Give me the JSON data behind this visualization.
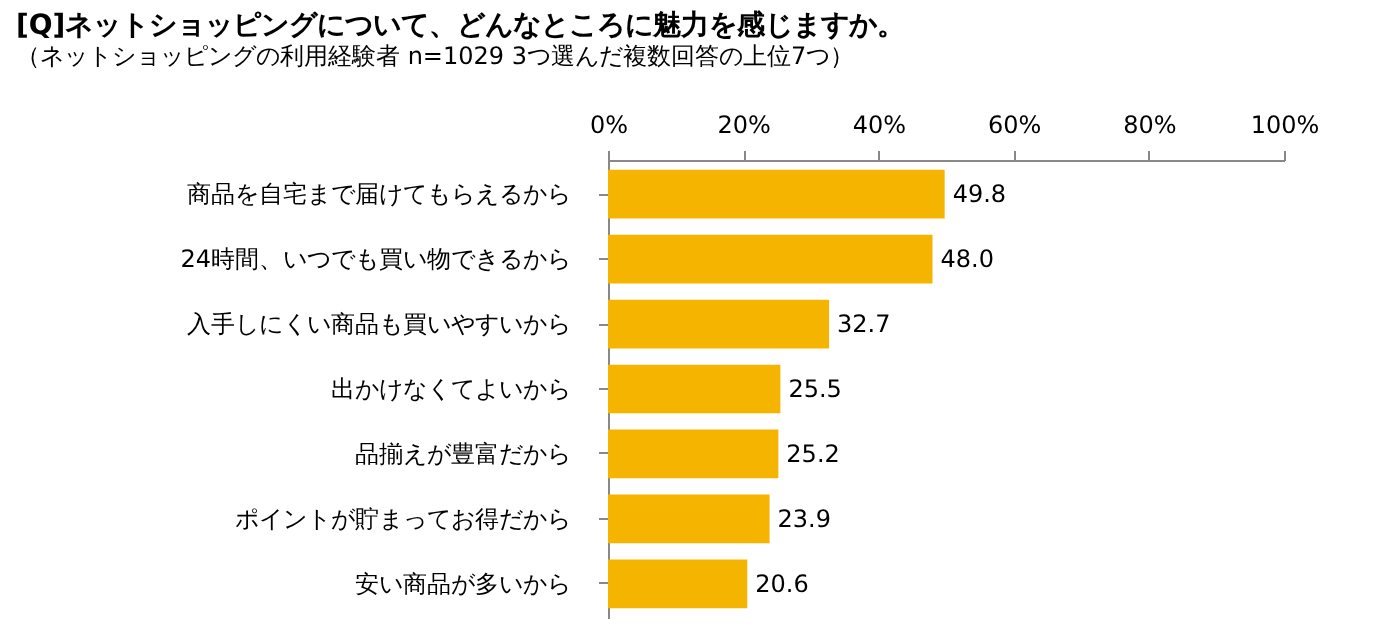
{
  "chart_data": {
    "type": "bar",
    "orientation": "horizontal",
    "title": "[Q]ネットショッピングについて、どんなところに魅力を感じますか。",
    "subtitle": "（ネットショッピングの利用経験者 n=1029 3つ選んだ複数回答の上位7つ）",
    "categories": [
      "商品を自宅まで届けてもらえるから",
      "24時間、いつでも買い物できるから",
      "入手しにくい商品も買いやすいから",
      "出かけなくてよいから",
      "品揃えが豊富だから",
      "ポイントが貯まってお得だから",
      "安い商品が多いから"
    ],
    "values": [
      49.8,
      48.0,
      32.7,
      25.5,
      25.2,
      23.9,
      20.6
    ],
    "value_labels": [
      "49.8",
      "48.0",
      "32.7",
      "25.5",
      "25.2",
      "23.9",
      "20.6"
    ],
    "color": "#f5b400",
    "xlim": [
      0,
      100
    ],
    "xticks": [
      {
        "value": 0,
        "label": "0%"
      },
      {
        "value": 20,
        "label": "20%"
      },
      {
        "value": 40,
        "label": "40%"
      },
      {
        "value": 60,
        "label": "60%"
      },
      {
        "value": 80,
        "label": "80%"
      },
      {
        "value": 100,
        "label": "100%"
      }
    ],
    "grid": false
  }
}
